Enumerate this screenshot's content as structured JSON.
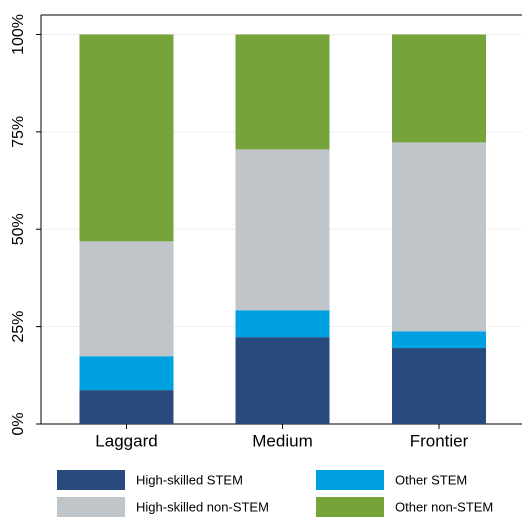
{
  "chart_data": {
    "type": "stacked-bar",
    "categories": [
      "Laggard",
      "Medium",
      "Frontier"
    ],
    "series": [
      {
        "name": "High-skilled STEM",
        "color": "#294a7d",
        "values": [
          8.7,
          22.3,
          19.5
        ]
      },
      {
        "name": "Other STEM",
        "color": "#00a1e0",
        "values": [
          8.7,
          6.9,
          4.3
        ]
      },
      {
        "name": "High-skilled non-STEM",
        "color": "#bfc5c9",
        "values": [
          29.5,
          41.3,
          48.5
        ]
      },
      {
        "name": "Other non-STEM",
        "color": "#76a33a",
        "values": [
          53.1,
          29.5,
          27.7
        ]
      }
    ],
    "ylim": [
      0,
      105
    ],
    "yticks": [
      {
        "value": 0,
        "label": "0%"
      },
      {
        "value": 25,
        "label": "25%"
      },
      {
        "value": 50,
        "label": "50%"
      },
      {
        "value": 75,
        "label": "75%"
      },
      {
        "value": 100,
        "label": "100%"
      }
    ],
    "grid": true
  }
}
